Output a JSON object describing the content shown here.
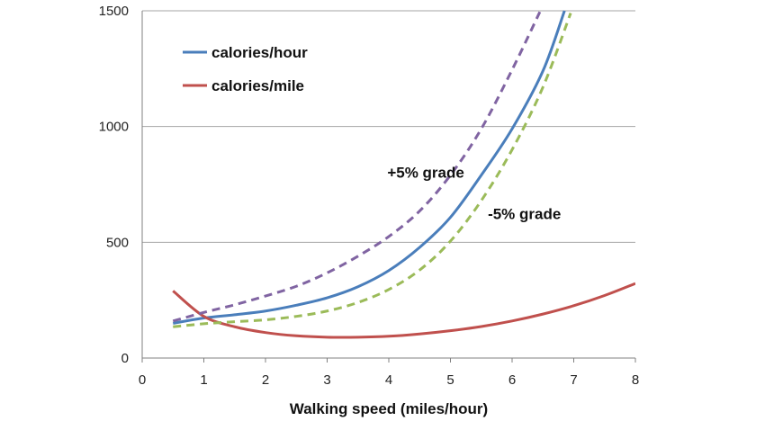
{
  "chart_data": {
    "type": "line",
    "title": "",
    "xlabel": "Walking speed (miles/hour)",
    "ylabel": "",
    "xlim": [
      0,
      8
    ],
    "ylim": [
      0,
      1500
    ],
    "xticks": [
      "0",
      "1",
      "2",
      "3",
      "4",
      "5",
      "6",
      "7",
      "8"
    ],
    "yticks": [
      "0",
      "500",
      "1000",
      "1500"
    ],
    "grid": "horizontal",
    "legend_position": "top-left",
    "series": [
      {
        "name": "calories/hour",
        "color": "#4a7ebb",
        "dash": "solid",
        "points": [
          [
            0.5,
            150
          ],
          [
            1,
            173
          ],
          [
            1.5,
            187
          ],
          [
            2,
            203
          ],
          [
            2.5,
            228
          ],
          [
            3,
            260
          ],
          [
            3.5,
            308
          ],
          [
            4,
            378
          ],
          [
            4.5,
            478
          ],
          [
            5,
            608
          ],
          [
            5.5,
            790
          ],
          [
            6,
            990
          ],
          [
            6.5,
            1240
          ],
          [
            6.85,
            1500
          ]
        ]
      },
      {
        "name": "calories/mile",
        "color": "#c0504d",
        "dash": "solid",
        "points": [
          [
            0.5,
            290
          ],
          [
            1,
            180
          ],
          [
            1.5,
            135
          ],
          [
            2,
            110
          ],
          [
            2.5,
            96
          ],
          [
            3,
            90
          ],
          [
            3.5,
            90
          ],
          [
            4,
            94
          ],
          [
            4.5,
            104
          ],
          [
            5,
            118
          ],
          [
            5.5,
            136
          ],
          [
            6,
            160
          ],
          [
            6.5,
            190
          ],
          [
            7,
            226
          ],
          [
            7.5,
            270
          ],
          [
            8,
            322
          ]
        ]
      },
      {
        "color": "#8064a2",
        "dash": "dashed",
        "points": [
          [
            0.5,
            160
          ],
          [
            1,
            197
          ],
          [
            1.5,
            230
          ],
          [
            2,
            268
          ],
          [
            2.5,
            310
          ],
          [
            3,
            368
          ],
          [
            3.5,
            440
          ],
          [
            4,
            525
          ],
          [
            4.5,
            635
          ],
          [
            5,
            790
          ],
          [
            5.5,
            990
          ],
          [
            6,
            1245
          ],
          [
            6.45,
            1495
          ]
        ]
      },
      {
        "color": "#9bbb59",
        "dash": "dashed",
        "points": [
          [
            0.5,
            135
          ],
          [
            1,
            148
          ],
          [
            1.5,
            157
          ],
          [
            2,
            165
          ],
          [
            2.5,
            180
          ],
          [
            3,
            203
          ],
          [
            3.5,
            240
          ],
          [
            4,
            296
          ],
          [
            4.5,
            380
          ],
          [
            5,
            505
          ],
          [
            5.5,
            680
          ],
          [
            6,
            900
          ],
          [
            6.5,
            1170
          ],
          [
            6.95,
            1490
          ]
        ]
      }
    ],
    "annotations": [
      {
        "text": "+5% grade",
        "x": 4.6,
        "y": 780
      },
      {
        "text": "-5% grade",
        "x": 6.2,
        "y": 600
      }
    ]
  }
}
